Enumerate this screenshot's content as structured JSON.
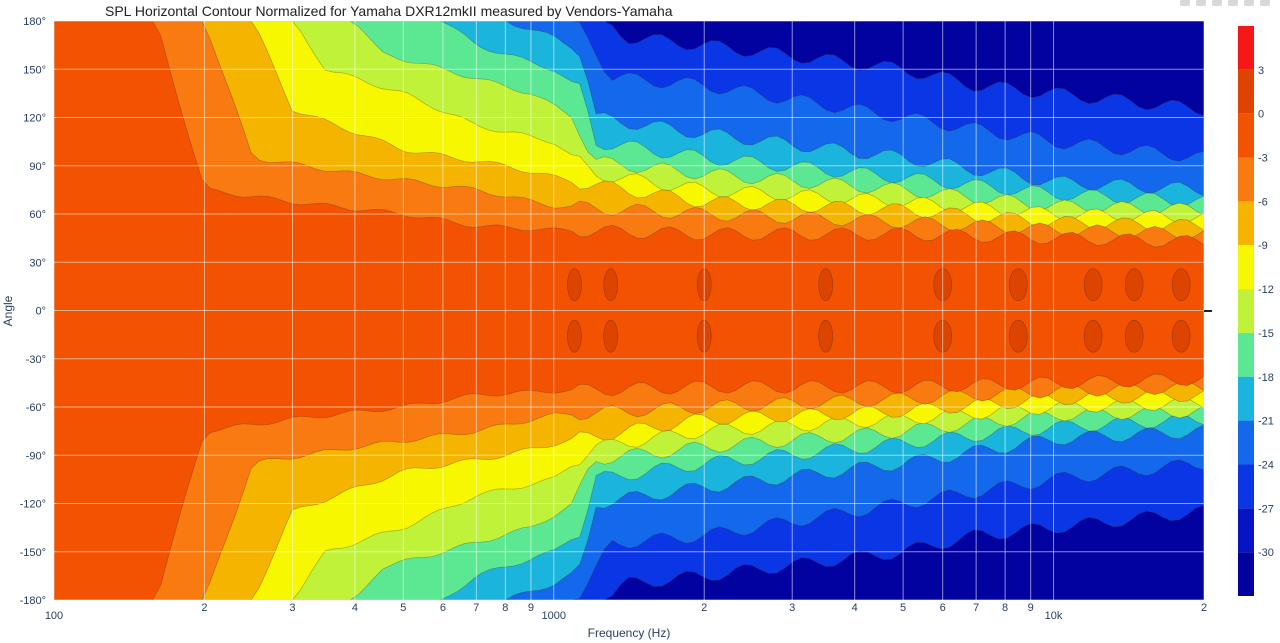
{
  "chart_data": {
    "type": "heatmap",
    "subtype": "contour",
    "title": "SPL Horizontal Contour Normalized for Yamaha DXR12mkII measured by Vendors-Yamaha",
    "xlabel": "Frequency (Hz)",
    "ylabel": "Angle",
    "x_scale": "log",
    "xlim": [
      100,
      20000
    ],
    "ylim": [
      -180,
      180
    ],
    "x_ticks": [
      {
        "value": 100,
        "label": "100"
      },
      {
        "value": 200,
        "label": "2"
      },
      {
        "value": 300,
        "label": "3"
      },
      {
        "value": 400,
        "label": "4"
      },
      {
        "value": 500,
        "label": "5"
      },
      {
        "value": 600,
        "label": "6"
      },
      {
        "value": 700,
        "label": "7"
      },
      {
        "value": 800,
        "label": "8"
      },
      {
        "value": 900,
        "label": "9"
      },
      {
        "value": 1000,
        "label": "1000"
      },
      {
        "value": 2000,
        "label": "2"
      },
      {
        "value": 3000,
        "label": "3"
      },
      {
        "value": 4000,
        "label": "4"
      },
      {
        "value": 5000,
        "label": "5"
      },
      {
        "value": 6000,
        "label": "6"
      },
      {
        "value": 7000,
        "label": "7"
      },
      {
        "value": 8000,
        "label": "8"
      },
      {
        "value": 9000,
        "label": "9"
      },
      {
        "value": 10000,
        "label": "10k"
      },
      {
        "value": 20000,
        "label": "2"
      }
    ],
    "y_ticks": [
      {
        "value": 180,
        "label": "180°"
      },
      {
        "value": 150,
        "label": "150°"
      },
      {
        "value": 120,
        "label": "120°"
      },
      {
        "value": 90,
        "label": "90°"
      },
      {
        "value": 60,
        "label": "60°"
      },
      {
        "value": 30,
        "label": "30°"
      },
      {
        "value": 0,
        "label": "0°"
      },
      {
        "value": -30,
        "label": "-30°"
      },
      {
        "value": -60,
        "label": "-60°"
      },
      {
        "value": -90,
        "label": "-90°"
      },
      {
        "value": -120,
        "label": "-120°"
      },
      {
        "value": -150,
        "label": "-150°"
      },
      {
        "value": -180,
        "label": "-180°"
      }
    ],
    "colorbar": {
      "range": [
        -33,
        6
      ],
      "step": 3,
      "ticks": [
        3,
        0,
        -3,
        -6,
        -9,
        -12,
        -15,
        -18,
        -21,
        -24,
        -27,
        -30
      ],
      "levels": [
        {
          "from": 3,
          "to": 6,
          "color": "#f61818"
        },
        {
          "from": 0,
          "to": 3,
          "color": "#dd4400"
        },
        {
          "from": -3,
          "to": 0,
          "color": "#f35300"
        },
        {
          "from": -6,
          "to": -3,
          "color": "#f97a10"
        },
        {
          "from": -9,
          "to": -6,
          "color": "#f5b400"
        },
        {
          "from": -12,
          "to": -9,
          "color": "#f7f700"
        },
        {
          "from": -15,
          "to": -12,
          "color": "#c0f23a"
        },
        {
          "from": -18,
          "to": -15,
          "color": "#5ce892"
        },
        {
          "from": -21,
          "to": -18,
          "color": "#1ab4dc"
        },
        {
          "from": -24,
          "to": -21,
          "color": "#1468ec"
        },
        {
          "from": -27,
          "to": -24,
          "color": "#0a36e6"
        },
        {
          "from": -30,
          "to": -27,
          "color": "#0515c4"
        },
        {
          "from": -33,
          "to": -30,
          "color": "#0202a0"
        }
      ]
    },
    "beamwidth_by_level": [
      {
        "level": -3,
        "points": [
          [
            100,
            360
          ],
          [
            160,
            360
          ],
          [
            200,
            150
          ],
          [
            300,
            135
          ],
          [
            500,
            120
          ],
          [
            700,
            105
          ],
          [
            1000,
            100
          ],
          [
            2000,
            95
          ],
          [
            5000,
            95
          ],
          [
            10000,
            90
          ],
          [
            20000,
            85
          ]
        ]
      },
      {
        "level": -6,
        "points": [
          [
            100,
            360
          ],
          [
            200,
            360
          ],
          [
            250,
            190
          ],
          [
            400,
            170
          ],
          [
            700,
            150
          ],
          [
            1000,
            130
          ],
          [
            2000,
            120
          ],
          [
            5000,
            110
          ],
          [
            10000,
            100
          ],
          [
            20000,
            95
          ]
        ]
      },
      {
        "level": -9,
        "points": [
          [
            100,
            360
          ],
          [
            250,
            360
          ],
          [
            300,
            250
          ],
          [
            500,
            200
          ],
          [
            800,
            180
          ],
          [
            1100,
            160
          ],
          [
            2000,
            135
          ],
          [
            5000,
            125
          ],
          [
            10000,
            110
          ],
          [
            20000,
            105
          ]
        ]
      },
      {
        "level": -12,
        "points": [
          [
            100,
            360
          ],
          [
            300,
            360
          ],
          [
            350,
            300
          ],
          [
            500,
            270
          ],
          [
            700,
            230
          ],
          [
            1000,
            210
          ],
          [
            1200,
            170
          ],
          [
            2000,
            150
          ],
          [
            5000,
            135
          ],
          [
            10000,
            120
          ],
          [
            20000,
            115
          ]
        ]
      },
      {
        "level": -15,
        "points": [
          [
            100,
            360
          ],
          [
            400,
            360
          ],
          [
            450,
            320
          ],
          [
            600,
            300
          ],
          [
            900,
            270
          ],
          [
            1100,
            240
          ],
          [
            1200,
            185
          ],
          [
            2000,
            170
          ],
          [
            5000,
            150
          ],
          [
            10000,
            130
          ],
          [
            20000,
            125
          ]
        ]
      },
      {
        "level": -18,
        "points": [
          [
            100,
            360
          ],
          [
            600,
            360
          ],
          [
            700,
            330
          ],
          [
            1000,
            300
          ],
          [
            1150,
            270
          ],
          [
            1200,
            210
          ],
          [
            2000,
            190
          ],
          [
            5000,
            165
          ],
          [
            10000,
            145
          ],
          [
            20000,
            135
          ]
        ]
      },
      {
        "level": -21,
        "points": [
          [
            100,
            360
          ],
          [
            800,
            360
          ],
          [
            1000,
            340
          ],
          [
            1150,
            320
          ],
          [
            1200,
            240
          ],
          [
            2000,
            220
          ],
          [
            5000,
            190
          ],
          [
            10000,
            160
          ],
          [
            20000,
            150
          ]
        ]
      },
      {
        "level": -24,
        "points": [
          [
            100,
            360
          ],
          [
            1100,
            360
          ],
          [
            1200,
            330
          ],
          [
            1300,
            290
          ],
          [
            2000,
            280
          ],
          [
            5000,
            240
          ],
          [
            10000,
            210
          ],
          [
            20000,
            190
          ]
        ]
      },
      {
        "level": -27,
        "points": [
          [
            100,
            360
          ],
          [
            1250,
            360
          ],
          [
            1400,
            340
          ],
          [
            2000,
            330
          ],
          [
            5000,
            300
          ],
          [
            7000,
            280
          ],
          [
            10000,
            270
          ],
          [
            20000,
            250
          ]
        ]
      }
    ]
  }
}
